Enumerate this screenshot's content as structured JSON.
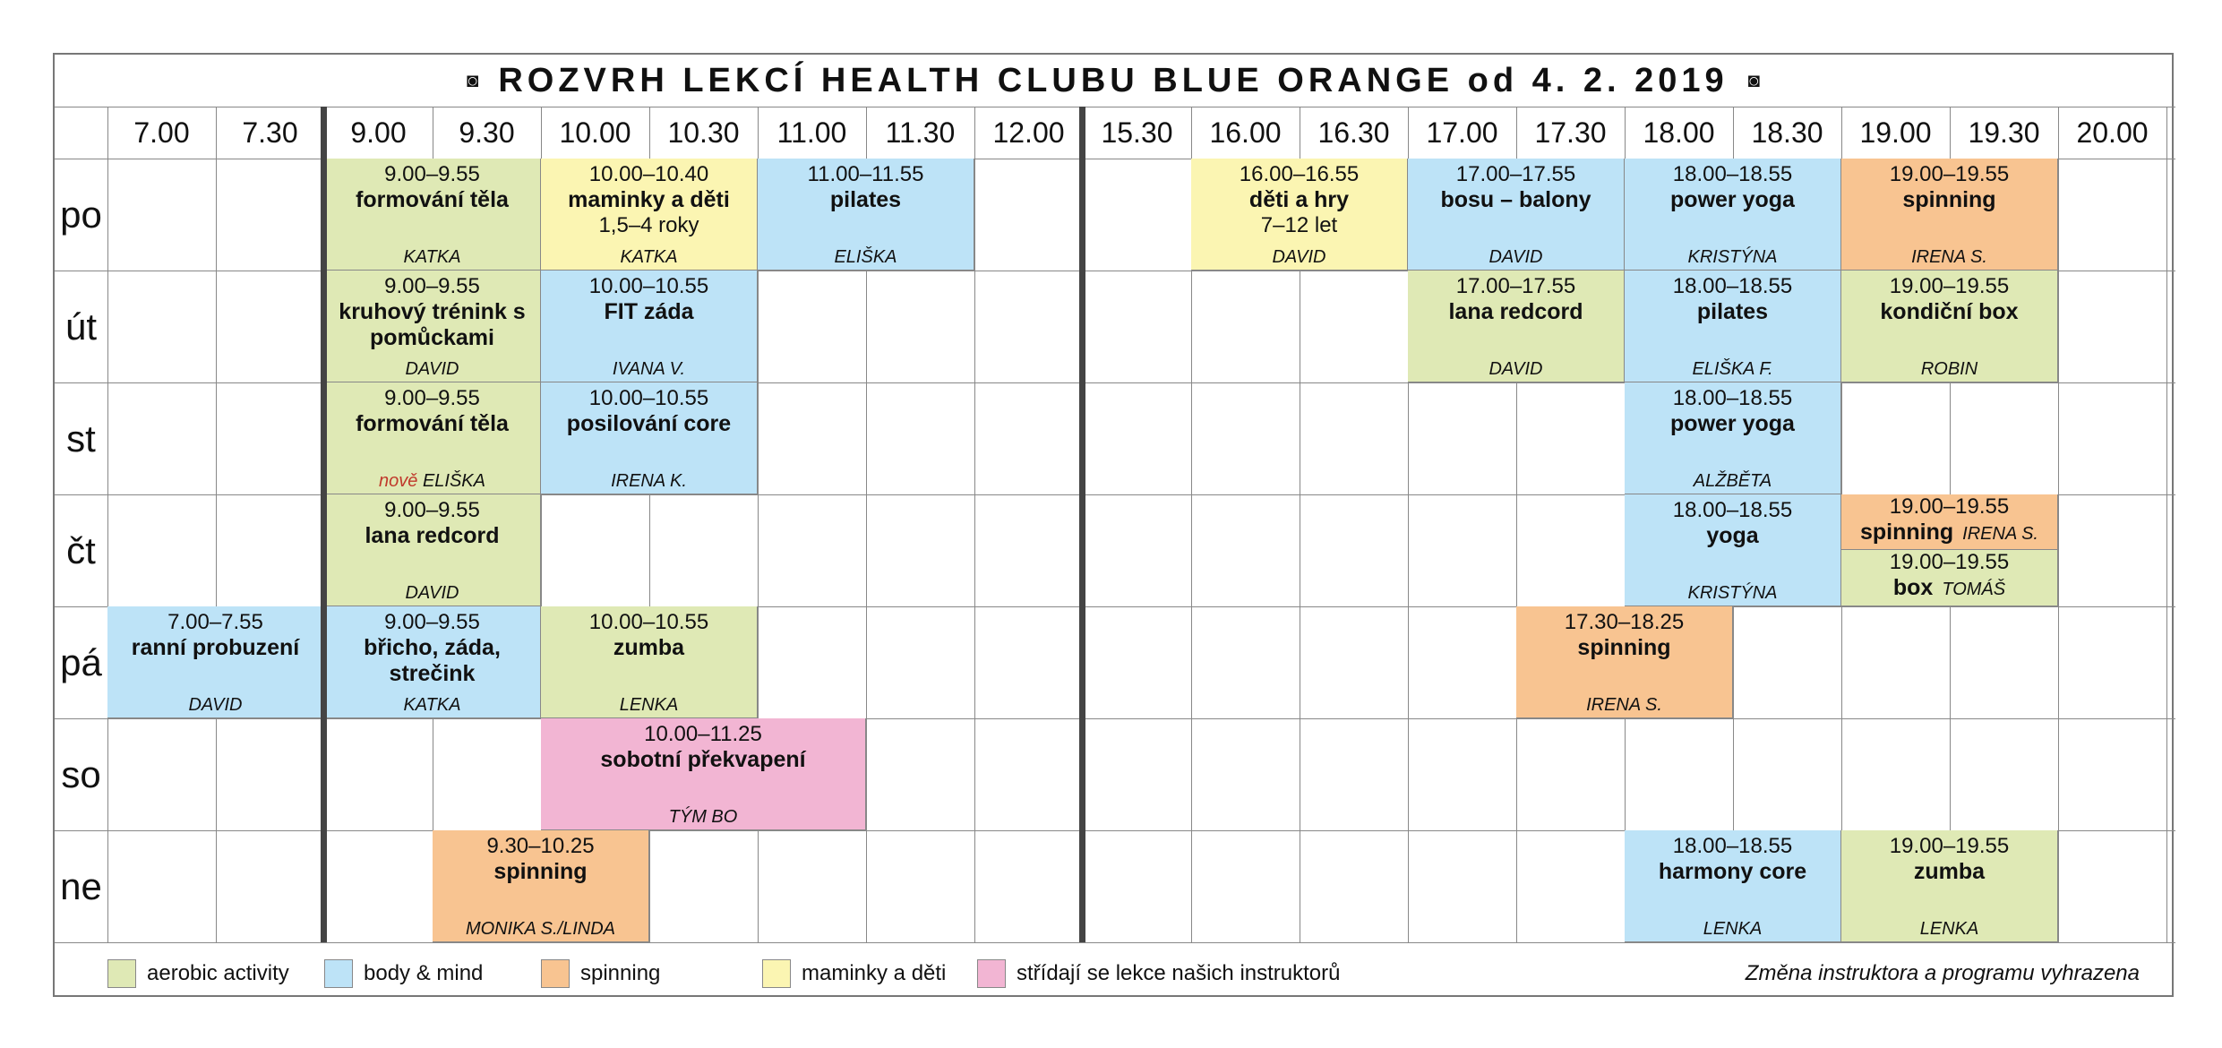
{
  "title": "ROZVRH LEKCÍ HEALTH CLUBU BLUE ORANGE od 4. 2. 2019",
  "ornament": "◙",
  "times": [
    "7.00",
    "7.30",
    "9.00",
    "9.30",
    "10.00",
    "10.30",
    "11.00",
    "11.30",
    "12.00",
    "15.30",
    "16.00",
    "16.30",
    "17.00",
    "17.30",
    "18.00",
    "18.30",
    "19.00",
    "19.30",
    "20.00"
  ],
  "days": [
    "po",
    "út",
    "st",
    "čt",
    "pá",
    "so",
    "ne"
  ],
  "classes": [
    {
      "day": 0,
      "col": 2,
      "span": 2,
      "cat": "aerobic",
      "time": "9.00–9.55",
      "name": "formování těla",
      "instructor": "KATKA"
    },
    {
      "day": 0,
      "col": 4,
      "span": 2,
      "cat": "mam",
      "time": "10.00–10.40",
      "name": "maminky a děti",
      "extra": "1,5–4 roky",
      "instructor": "KATKA"
    },
    {
      "day": 0,
      "col": 6,
      "span": 2,
      "cat": "body",
      "time": "11.00–11.55",
      "name": "pilates",
      "instructor": "ELIŠKA"
    },
    {
      "day": 0,
      "col": 10,
      "span": 2,
      "cat": "mam",
      "time": "16.00–16.55",
      "name": "děti a hry",
      "extra": "7–12 let",
      "instructor": "DAVID"
    },
    {
      "day": 0,
      "col": 12,
      "span": 2,
      "cat": "body",
      "time": "17.00–17.55",
      "name": "bosu – balony",
      "instructor": "DAVID"
    },
    {
      "day": 0,
      "col": 14,
      "span": 2,
      "cat": "body",
      "time": "18.00–18.55",
      "name": "power yoga",
      "instructor": "KRISTÝNA"
    },
    {
      "day": 0,
      "col": 16,
      "span": 2,
      "cat": "spin",
      "time": "19.00–19.55",
      "name": "spinning",
      "instructor": "IRENA S."
    },
    {
      "day": 1,
      "col": 2,
      "span": 2,
      "cat": "aerobic",
      "time": "9.00–9.55",
      "name": "kruhový trénink s pomůckami",
      "instructor": "DAVID"
    },
    {
      "day": 1,
      "col": 4,
      "span": 2,
      "cat": "body",
      "time": "10.00–10.55",
      "name": "FIT záda",
      "instructor": "IVANA V."
    },
    {
      "day": 1,
      "col": 12,
      "span": 2,
      "cat": "aerobic",
      "time": "17.00–17.55",
      "name": "lana redcord",
      "instructor": "DAVID"
    },
    {
      "day": 1,
      "col": 14,
      "span": 2,
      "cat": "body",
      "time": "18.00–18.55",
      "name": "pilates",
      "instructor": "ELIŠKA F."
    },
    {
      "day": 1,
      "col": 16,
      "span": 2,
      "cat": "aerobic",
      "time": "19.00–19.55",
      "name": "kondiční box",
      "instructor": "ROBIN"
    },
    {
      "day": 2,
      "col": 2,
      "span": 2,
      "cat": "aerobic",
      "time": "9.00–9.55",
      "name": "formování těla",
      "new": "nově",
      "instructor": "ELIŠKA"
    },
    {
      "day": 2,
      "col": 4,
      "span": 2,
      "cat": "body",
      "time": "10.00–10.55",
      "name": "posilování core",
      "instructor": "IRENA K."
    },
    {
      "day": 2,
      "col": 14,
      "span": 2,
      "cat": "body",
      "time": "18.00–18.55",
      "name": "power yoga",
      "instructor": "ALŽBĚTA"
    },
    {
      "day": 3,
      "col": 2,
      "span": 2,
      "cat": "aerobic",
      "time": "9.00–9.55",
      "name": "lana redcord",
      "instructor": "DAVID"
    },
    {
      "day": 3,
      "col": 14,
      "span": 2,
      "cat": "body",
      "time": "18.00–18.55",
      "name": "yoga",
      "instructor": "KRISTÝNA"
    },
    {
      "day": 4,
      "col": 0,
      "span": 2,
      "cat": "body",
      "time": "7.00–7.55",
      "name": "ranní probuzení",
      "instructor": "DAVID"
    },
    {
      "day": 4,
      "col": 2,
      "span": 2,
      "cat": "body",
      "time": "9.00–9.55",
      "name": "břicho, záda, strečink",
      "instructor": "KATKA"
    },
    {
      "day": 4,
      "col": 4,
      "span": 2,
      "cat": "aerobic",
      "time": "10.00–10.55",
      "name": "zumba",
      "instructor": "LENKA"
    },
    {
      "day": 4,
      "col": 13,
      "span": 2,
      "cat": "spin",
      "time": "17.30–18.25",
      "name": "spinning",
      "instructor": "IRENA S."
    },
    {
      "day": 5,
      "col": 4,
      "span": 3,
      "cat": "str",
      "time": "10.00–11.25",
      "name": "sobotní překvapení",
      "instructor": "TÝM BO"
    },
    {
      "day": 6,
      "col": 3,
      "span": 2,
      "cat": "spin",
      "time": "9.30–10.25",
      "name": "spinning",
      "instructor": "MONIKA S./LINDA"
    },
    {
      "day": 6,
      "col": 14,
      "span": 2,
      "cat": "body",
      "time": "18.00–18.55",
      "name": "harmony core",
      "instructor": "LENKA"
    },
    {
      "day": 6,
      "col": 16,
      "span": 2,
      "cat": "aerobic",
      "time": "19.00–19.55",
      "name": "zumba",
      "instructor": "LENKA"
    }
  ],
  "split": [
    {
      "cat": "spin",
      "time": "19.00–19.55",
      "name": "spinning",
      "instructor": "IRENA S."
    },
    {
      "cat": "aerobic",
      "time": "19.00–19.55",
      "name": "box",
      "instructor": "TOMÁŠ"
    }
  ],
  "legend": [
    {
      "cat": "aerobic",
      "label": "aerobic activity"
    },
    {
      "cat": "body",
      "label": "body & mind"
    },
    {
      "cat": "spin",
      "label": "spinning"
    },
    {
      "cat": "mam",
      "label": "maminky a děti"
    },
    {
      "cat": "str",
      "label": "střídají se lekce našich instruktorů"
    }
  ],
  "note": "Změna instruktora a programu vyhrazena",
  "colors": {
    "aerobic": "#dfe9b5",
    "body": "#bde3f7",
    "spin": "#f8c491",
    "mam": "#fbf5b2",
    "str": "#f2b5d3"
  }
}
